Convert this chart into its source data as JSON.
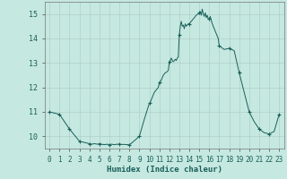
{
  "title": "",
  "xlabel": "Humidex (Indice chaleur)",
  "ylabel": "",
  "background_color": "#c5e8e0",
  "grid_color": "#b0d0c8",
  "line_color": "#1a5f5a",
  "marker_color": "#1a5f5a",
  "xlim": [
    -0.5,
    23.5
  ],
  "ylim": [
    9.5,
    15.5
  ],
  "yticks": [
    10,
    11,
    12,
    13,
    14,
    15
  ],
  "xticks": [
    0,
    1,
    2,
    3,
    4,
    5,
    6,
    7,
    8,
    9,
    10,
    11,
    12,
    13,
    14,
    15,
    16,
    17,
    18,
    19,
    20,
    21,
    22,
    23
  ],
  "x": [
    0,
    0.5,
    1,
    1.5,
    2,
    2.5,
    3,
    3.5,
    4,
    4.2,
    4.5,
    4.8,
    5,
    5.2,
    5.5,
    5.8,
    6,
    6.2,
    6.5,
    6.8,
    7,
    7.2,
    7.5,
    7.8,
    8,
    8.5,
    9,
    9.5,
    10,
    10.1,
    10.2,
    10.3,
    10.4,
    10.5,
    10.6,
    10.7,
    10.8,
    10.9,
    11,
    11.1,
    11.2,
    11.3,
    11.4,
    11.5,
    11.6,
    11.7,
    11.8,
    11.9,
    12,
    12.1,
    12.2,
    12.3,
    12.4,
    12.5,
    12.6,
    12.7,
    12.8,
    12.9,
    13,
    13.1,
    13.2,
    13.3,
    13.4,
    13.5,
    13.6,
    13.7,
    13.8,
    13.9,
    14,
    14.1,
    14.2,
    14.3,
    14.4,
    14.5,
    14.6,
    14.7,
    14.8,
    14.9,
    15,
    15.1,
    15.2,
    15.3,
    15.4,
    15.5,
    15.6,
    15.7,
    15.8,
    15.9,
    16,
    16.1,
    16.2,
    16.3,
    16.4,
    16.5,
    16.6,
    16.7,
    16.8,
    16.9,
    17,
    17.5,
    18,
    18.5,
    19,
    19.5,
    20,
    20.5,
    21,
    21.5,
    22,
    22.5,
    23
  ],
  "y": [
    11.0,
    10.95,
    10.9,
    10.6,
    10.3,
    10.05,
    9.8,
    9.75,
    9.7,
    9.68,
    9.7,
    9.68,
    9.7,
    9.68,
    9.66,
    9.68,
    9.65,
    9.68,
    9.66,
    9.68,
    9.68,
    9.67,
    9.67,
    9.66,
    9.65,
    9.82,
    10.0,
    10.7,
    11.35,
    11.4,
    11.5,
    11.6,
    11.7,
    11.8,
    11.85,
    11.9,
    11.95,
    12.0,
    12.2,
    12.25,
    12.3,
    12.4,
    12.5,
    12.55,
    12.6,
    12.62,
    12.65,
    12.7,
    13.05,
    13.1,
    13.2,
    13.1,
    13.05,
    13.1,
    13.15,
    13.1,
    13.2,
    13.25,
    14.15,
    14.5,
    14.7,
    14.5,
    14.55,
    14.4,
    14.6,
    14.5,
    14.55,
    14.6,
    14.6,
    14.65,
    14.7,
    14.75,
    14.8,
    14.85,
    14.9,
    14.95,
    14.98,
    15.0,
    15.05,
    15.1,
    14.95,
    15.2,
    15.0,
    14.9,
    15.05,
    14.85,
    14.95,
    14.8,
    14.8,
    14.9,
    14.75,
    14.6,
    14.5,
    14.4,
    14.3,
    14.2,
    14.1,
    14.0,
    13.7,
    13.55,
    13.6,
    13.5,
    12.6,
    11.8,
    11.0,
    10.6,
    10.3,
    10.15,
    10.1,
    10.2,
    10.9
  ],
  "marker_x": [
    0,
    1,
    2,
    3,
    4,
    5,
    6,
    7,
    8,
    9,
    10,
    11,
    12,
    13,
    14,
    15,
    16,
    17,
    18,
    19,
    20,
    21,
    22,
    23
  ],
  "marker_y": [
    11.0,
    10.9,
    10.3,
    9.8,
    9.7,
    9.7,
    9.65,
    9.68,
    9.65,
    10.0,
    11.35,
    12.2,
    13.05,
    14.15,
    14.6,
    15.05,
    14.8,
    13.7,
    13.6,
    12.6,
    11.0,
    10.3,
    10.1,
    10.9
  ]
}
